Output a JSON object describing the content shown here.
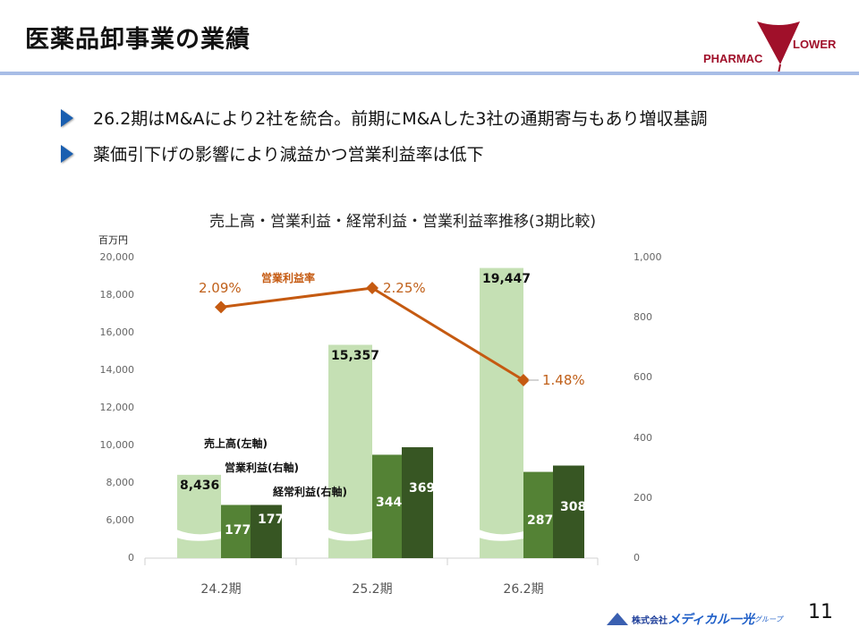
{
  "header": {
    "title": "医薬品卸事業の業績",
    "logo_left": "PHARMAC",
    "logo_right": "LOWER"
  },
  "bullets": [
    "26.2期はM&Aにより2社を統合。前期にM&Aした3社の通期寄与もあり増収基調",
    "薬価引下げの影響により減益かつ営業利益率は低下"
  ],
  "chart_data": {
    "type": "bar+line",
    "title": "売上高・営業利益・経常利益・営業利益率推移(3期比較)",
    "unit_left": "百万円",
    "categories": [
      "24.2期",
      "25.2期",
      "26.2期"
    ],
    "left_axis": {
      "ticks": [
        "0",
        "6,000",
        "8,000",
        "10,000",
        "12,000",
        "14,000",
        "16,000",
        "18,000",
        "20,000"
      ],
      "broken": true
    },
    "right_axis": {
      "ticks": [
        "0",
        "200",
        "400",
        "600",
        "800",
        "1,000"
      ],
      "range": [
        0,
        1000
      ]
    },
    "series": [
      {
        "name": "売上高(左軸)",
        "axis": "left",
        "color": "#c5e0b4",
        "values": [
          8436,
          15357,
          19447
        ],
        "labels": [
          "8,436",
          "15,357",
          "19,447"
        ]
      },
      {
        "name": "営業利益(右軸)",
        "axis": "right",
        "color": "#548235",
        "values": [
          177,
          344,
          287
        ],
        "labels": [
          "177",
          "344",
          "287"
        ]
      },
      {
        "name": "経常利益(右軸)",
        "axis": "right",
        "color": "#375623",
        "values": [
          177,
          369,
          308
        ],
        "labels": [
          "177",
          "369",
          "308"
        ]
      },
      {
        "name": "営業利益率",
        "type": "line",
        "color": "#c55a11",
        "values": [
          2.09,
          2.25,
          1.48
        ],
        "labels": [
          "2.09%",
          "2.25%",
          "1.48%"
        ]
      }
    ]
  },
  "footer": {
    "company": "株式会社",
    "brand": "メディカル一光",
    "group": "グループ",
    "page": "11"
  }
}
